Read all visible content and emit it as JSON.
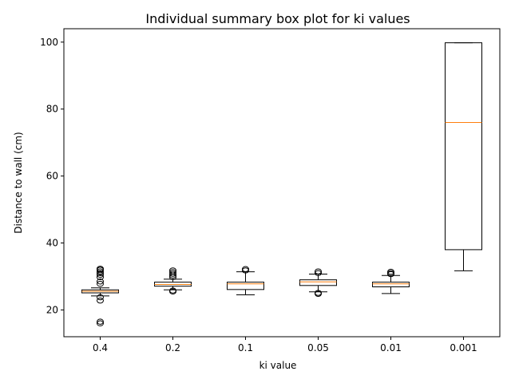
{
  "chart_data": {
    "type": "box",
    "title": "Individual summary box plot for ki values",
    "xlabel": "ki value",
    "ylabel": "Distance to wall (cm)",
    "categories": [
      "0.4",
      "0.2",
      "0.1",
      "0.05",
      "0.01",
      "0.001"
    ],
    "ylim": [
      12.0,
      104.0
    ],
    "yticks": [
      20,
      40,
      60,
      80,
      100
    ],
    "grid": false,
    "boxes": [
      {
        "category": "0.4",
        "whisker_low": 24.2,
        "q1": 25.1,
        "median": 25.6,
        "q3": 26.0,
        "whisker_high": 26.6,
        "outliers": [
          16.0,
          16.5,
          22.8,
          23.8,
          27.8,
          28.5,
          29.8,
          30.5,
          31.0,
          31.5,
          32.0,
          32.3
        ]
      },
      {
        "category": "0.2",
        "whisker_low": 26.0,
        "q1": 27.1,
        "median": 27.6,
        "q3": 28.3,
        "whisker_high": 29.2,
        "outliers": [
          25.5,
          25.8,
          29.8,
          30.3,
          30.8,
          31.3,
          31.8
        ]
      },
      {
        "category": "0.1",
        "whisker_low": 24.5,
        "q1": 26.1,
        "median": 27.8,
        "q3": 28.3,
        "whisker_high": 31.4,
        "outliers": [
          31.8,
          32.2
        ]
      },
      {
        "category": "0.05",
        "whisker_low": 25.4,
        "q1": 27.3,
        "median": 28.4,
        "q3": 29.0,
        "whisker_high": 30.7,
        "outliers": [
          24.8,
          25.1,
          31.0,
          31.5
        ]
      },
      {
        "category": "0.01",
        "whisker_low": 24.9,
        "q1": 26.9,
        "median": 27.8,
        "q3": 28.3,
        "whisker_high": 30.3,
        "outliers": [
          30.7,
          31.0,
          31.4
        ]
      },
      {
        "category": "0.001",
        "whisker_low": 31.7,
        "q1": 38.0,
        "median": 76.0,
        "q3": 99.8,
        "whisker_high": 99.8,
        "outliers": []
      }
    ],
    "colors": {
      "box": "#000000",
      "median": "#ff7f0e",
      "flier": "#000000"
    }
  }
}
